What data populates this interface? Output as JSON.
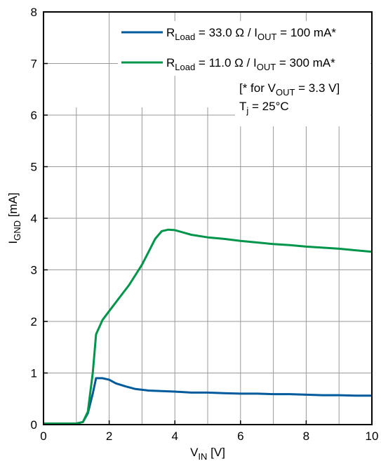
{
  "chart_data": {
    "type": "line",
    "xlabel": {
      "main": "V",
      "sub": "IN",
      "unit": " [V]"
    },
    "ylabel": {
      "main": "I",
      "sub": "GND",
      "unit": " [mA]"
    },
    "xlim": [
      0,
      10
    ],
    "ylim": [
      0,
      8
    ],
    "xticks": [
      0,
      2,
      4,
      6,
      8,
      10
    ],
    "yticks": [
      0,
      1,
      2,
      3,
      4,
      5,
      6,
      7,
      8
    ],
    "grid": true,
    "minor_gridlines": {
      "x_step": 1,
      "y_step": 1,
      "region": "below the annotation"
    },
    "legend_position": "top-right",
    "series": [
      {
        "legend": {
          "r": "R",
          "rsub": "Load",
          "mid": " = 33.0 Ω / I",
          "isub": "OUT",
          "tail": " = 100 mA*"
        },
        "color": "#005a9c",
        "x": [
          0,
          1.0,
          1.2,
          1.35,
          1.5,
          1.6,
          1.8,
          2.0,
          2.2,
          2.5,
          2.8,
          3.2,
          3.6,
          4.0,
          4.5,
          5.0,
          5.5,
          6.0,
          6.5,
          7.0,
          7.5,
          8.0,
          8.5,
          9.0,
          9.5,
          10.0
        ],
        "y": [
          0.02,
          0.02,
          0.05,
          0.22,
          0.6,
          0.9,
          0.9,
          0.87,
          0.8,
          0.74,
          0.69,
          0.66,
          0.65,
          0.64,
          0.62,
          0.62,
          0.61,
          0.6,
          0.6,
          0.59,
          0.59,
          0.58,
          0.57,
          0.57,
          0.56,
          0.56
        ]
      },
      {
        "legend": {
          "r": "R",
          "rsub": "Load",
          "mid": " = 11.0 Ω / I",
          "isub": "OUT",
          "tail": " = 300 mA*"
        },
        "color": "#00954a",
        "x": [
          0,
          1.0,
          1.2,
          1.35,
          1.5,
          1.6,
          1.8,
          2.0,
          2.3,
          2.6,
          2.8,
          3.0,
          3.2,
          3.4,
          3.6,
          3.8,
          4.0,
          4.5,
          5.0,
          5.5,
          6.0,
          6.5,
          7.0,
          7.5,
          8.0,
          8.5,
          9.0,
          9.5,
          10.0
        ],
        "y": [
          0.02,
          0.02,
          0.05,
          0.25,
          1.0,
          1.75,
          2.03,
          2.2,
          2.45,
          2.7,
          2.9,
          3.1,
          3.35,
          3.6,
          3.75,
          3.78,
          3.77,
          3.68,
          3.63,
          3.6,
          3.56,
          3.53,
          3.5,
          3.48,
          3.45,
          3.43,
          3.41,
          3.38,
          3.35
        ]
      }
    ],
    "annotation": {
      "line1": {
        "pre": "[* for V",
        "sub": "OUT",
        "post": " = 3.3 V]"
      },
      "line2": {
        "pre": "T",
        "sub": "j",
        "post": " = 25°C"
      }
    }
  }
}
